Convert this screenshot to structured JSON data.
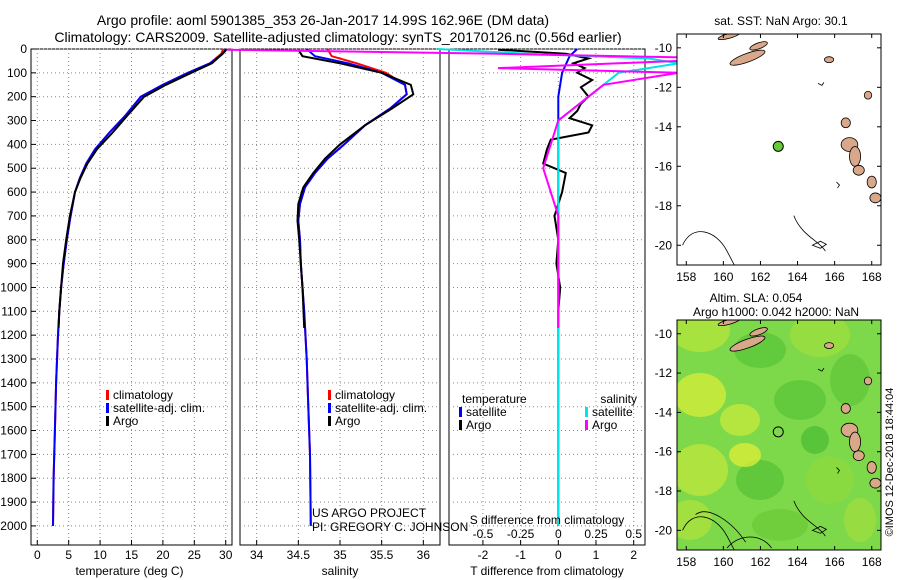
{
  "header": {
    "title_line1": "Argo profile: aoml 5901385_353 26-Jan-2017 14.99S 162.96E (DM data)",
    "title_line2": "Climatology: CARS2009. Satellite-adjusted climatology: synTS_20170126.nc (0.56d earlier)"
  },
  "credits": {
    "project": "US ARGO PROJECT",
    "pi": "PI: GREGORY C. JOHNSON",
    "stamp": "©IMOS 12-Dec-2018 18:44:04"
  },
  "colors": {
    "climatology": "#ff0000",
    "satellite": "#0000ff",
    "argo": "#000000",
    "sat_salinity": "#00e5e5",
    "argo_salinity": "#ff00ff",
    "land": "#d9a88a",
    "marker": "#66cc33"
  },
  "chart_data": [
    {
      "id": "temperature",
      "type": "line",
      "xlabel": "temperature (deg C)",
      "xlim": [
        -1,
        31
      ],
      "xticks": [
        0,
        5,
        10,
        15,
        20,
        25,
        30
      ],
      "ylim": [
        2080,
        0
      ],
      "yticks": [
        0,
        100,
        200,
        300,
        400,
        500,
        600,
        700,
        800,
        900,
        1000,
        1100,
        1200,
        1300,
        1400,
        1500,
        1600,
        1700,
        1800,
        1900,
        2000
      ],
      "legend": [
        "climatology",
        "satellite-adj. clim.",
        "Argo"
      ],
      "series": [
        {
          "name": "climatology",
          "color": "#ff0000",
          "x": [
            29.6,
            29.3,
            27.5,
            24,
            20,
            16.5,
            14,
            11.5,
            9.2,
            7.8,
            6.8,
            6,
            5.3,
            4.7,
            4.2,
            3.8,
            3.5,
            3.3,
            3,
            2.8,
            2.6,
            2.5
          ],
          "y": [
            0,
            20,
            60,
            100,
            150,
            200,
            280,
            350,
            420,
            480,
            540,
            600,
            700,
            800,
            900,
            1000,
            1100,
            1200,
            1400,
            1600,
            1800,
            2000
          ]
        },
        {
          "name": "satellite-adj. clim.",
          "color": "#0000ff",
          "x": [
            30.1,
            29.5,
            27.5,
            24,
            20,
            16.5,
            14,
            11.5,
            9.2,
            7.8,
            6.8,
            6,
            5.3,
            4.7,
            4.2,
            3.8,
            3.5,
            3.3,
            3,
            2.8,
            2.6,
            2.5
          ],
          "y": [
            0,
            20,
            60,
            100,
            150,
            200,
            280,
            350,
            420,
            480,
            540,
            600,
            700,
            800,
            900,
            1000,
            1100,
            1200,
            1400,
            1600,
            1800,
            2000
          ]
        },
        {
          "name": "Argo",
          "color": "#000000",
          "x": [
            30.1,
            29.5,
            27.8,
            24.5,
            20.5,
            17,
            14.3,
            12,
            9.5,
            8,
            6.9,
            6,
            5.2,
            4.6,
            4.1,
            3.8,
            3.5,
            3.4
          ],
          "y": [
            3,
            20,
            60,
            100,
            150,
            200,
            280,
            350,
            420,
            480,
            540,
            600,
            700,
            800,
            900,
            1000,
            1100,
            1170
          ]
        }
      ]
    },
    {
      "id": "salinity",
      "type": "line",
      "xlabel": "salinity",
      "xlim": [
        33.8,
        36.2
      ],
      "xticks": [
        34,
        34.5,
        35,
        35.5,
        36
      ],
      "ylim": [
        2080,
        0
      ],
      "legend": [
        "climatology",
        "satellite-adj. clim.",
        "Argo"
      ],
      "series": [
        {
          "name": "climatology",
          "color": "#ff0000",
          "x": [
            34.85,
            34.9,
            35.2,
            35.55,
            35.78,
            35.8,
            35.6,
            35.3,
            35.05,
            34.85,
            34.7,
            34.58,
            34.52,
            34.5,
            34.52,
            34.53,
            34.55,
            34.57,
            34.6,
            34.62,
            34.64,
            34.65
          ],
          "y": [
            0,
            30,
            60,
            100,
            150,
            190,
            250,
            320,
            400,
            460,
            520,
            580,
            650,
            720,
            800,
            900,
            1000,
            1100,
            1300,
            1500,
            1700,
            2000
          ]
        },
        {
          "name": "satellite-adj. clim.",
          "color": "#0000ff",
          "x": [
            34.6,
            34.7,
            35.1,
            35.5,
            35.78,
            35.8,
            35.6,
            35.3,
            35.05,
            34.85,
            34.7,
            34.58,
            34.52,
            34.5,
            34.52,
            34.53,
            34.55,
            34.57,
            34.6,
            34.62,
            34.64,
            34.65
          ],
          "y": [
            0,
            30,
            60,
            100,
            150,
            190,
            250,
            320,
            400,
            460,
            520,
            580,
            650,
            720,
            800,
            900,
            1000,
            1100,
            1300,
            1500,
            1700,
            2000
          ]
        },
        {
          "name": "Argo",
          "color": "#000000",
          "x": [
            34.5,
            34.55,
            35.0,
            35.5,
            35.85,
            35.88,
            35.62,
            35.3,
            35.0,
            34.82,
            34.68,
            34.56,
            34.5,
            34.49,
            34.51,
            34.53,
            34.55,
            34.57
          ],
          "y": [
            3,
            30,
            60,
            100,
            150,
            190,
            250,
            320,
            400,
            460,
            520,
            580,
            650,
            720,
            800,
            900,
            1000,
            1170
          ]
        }
      ]
    },
    {
      "id": "difference",
      "type": "line",
      "xlabel": "T difference from climatology",
      "x2label": "S difference from climatology",
      "xlim": [
        -2.9,
        2.3
      ],
      "xticks": [
        -2,
        -1,
        0,
        1,
        2
      ],
      "x2ticks": [
        {
          "v": -0.5,
          "t": "-0.5"
        },
        {
          "v": -0.25,
          "t": "-0.25"
        },
        {
          "v": 0,
          "t": "0"
        },
        {
          "v": 0.25,
          "t": "0.25"
        },
        {
          "v": 0.5,
          "t": "0.5"
        }
      ],
      "s_scale": 4,
      "ylim": [
        2080,
        0
      ],
      "legend_temperature_title": "temperature",
      "legend_salinity_title": "salinity",
      "legend_temperature": [
        "satellite",
        "Argo"
      ],
      "legend_salinity": [
        "satellite",
        "Argo"
      ],
      "series": [
        {
          "name": "temperature satellite",
          "color": "#0000ff",
          "x": [
            0.5,
            0.3,
            0.1,
            0,
            0,
            0,
            0,
            0,
            0,
            0,
            0
          ],
          "y": [
            0,
            30,
            100,
            200,
            300,
            400,
            600,
            800,
            1000,
            1500,
            2000
          ]
        },
        {
          "name": "temperature Argo",
          "color": "#000000",
          "x": [
            -1.6,
            0.2,
            0.8,
            0.4,
            0.7,
            0.5,
            0.9,
            0.6,
            0.8,
            0.6,
            0.5,
            0.3,
            0.9,
            0.8,
            -0.2,
            -0.3,
            -0.4,
            0.2,
            0.1,
            -0.1,
            0,
            -0.05,
            0.05,
            0,
            0
          ],
          "y": [
            3,
            20,
            40,
            60,
            80,
            100,
            130,
            160,
            200,
            230,
            260,
            290,
            320,
            350,
            380,
            420,
            480,
            520,
            600,
            700,
            800,
            900,
            1000,
            1100,
            1170
          ]
        },
        {
          "name": "salinity satellite",
          "color": "#00e5e5",
          "x": [
            -0.8,
            -0.2,
            0.6,
            0.8,
            0.4,
            0.2,
            0,
            0,
            0,
            0,
            0
          ],
          "y": [
            0,
            20,
            40,
            60,
            100,
            200,
            300,
            500,
            800,
            1500,
            2000
          ]
        },
        {
          "name": "salinity Argo",
          "color": "#ff00ff",
          "x": [
            -2.2,
            -0.4,
            1.2,
            0.4,
            -0.4,
            0.8,
            0.3,
            0.2,
            0,
            -0.1,
            0,
            0,
            0
          ],
          "y": [
            3,
            20,
            40,
            60,
            80,
            100,
            150,
            200,
            300,
            500,
            700,
            900,
            1170
          ]
        }
      ]
    },
    {
      "id": "map_sst",
      "type": "scatter",
      "title": "sat. SST: NaN Argo: 30.1",
      "xlim": [
        157.5,
        168.5
      ],
      "ylim": [
        -21,
        -9.3
      ],
      "xticks": [
        158,
        160,
        162,
        164,
        166,
        168
      ],
      "yticks": [
        -10,
        -12,
        -14,
        -16,
        -18,
        -20
      ],
      "points": [
        {
          "x": 162.96,
          "y": -14.99
        }
      ]
    },
    {
      "id": "map_sla",
      "type": "heatmap",
      "title_line1": "Altim. SLA: 0.054",
      "title_line2": "Argo h1000: 0.042 h2000: NaN",
      "xlim": [
        157.5,
        168.5
      ],
      "ylim": [
        -21,
        -9.3
      ],
      "xticks": [
        158,
        160,
        162,
        164,
        166,
        168
      ],
      "yticks": [
        -10,
        -12,
        -14,
        -16,
        -18,
        -20
      ],
      "points": [
        {
          "x": 162.96,
          "y": -14.99
        }
      ]
    }
  ]
}
